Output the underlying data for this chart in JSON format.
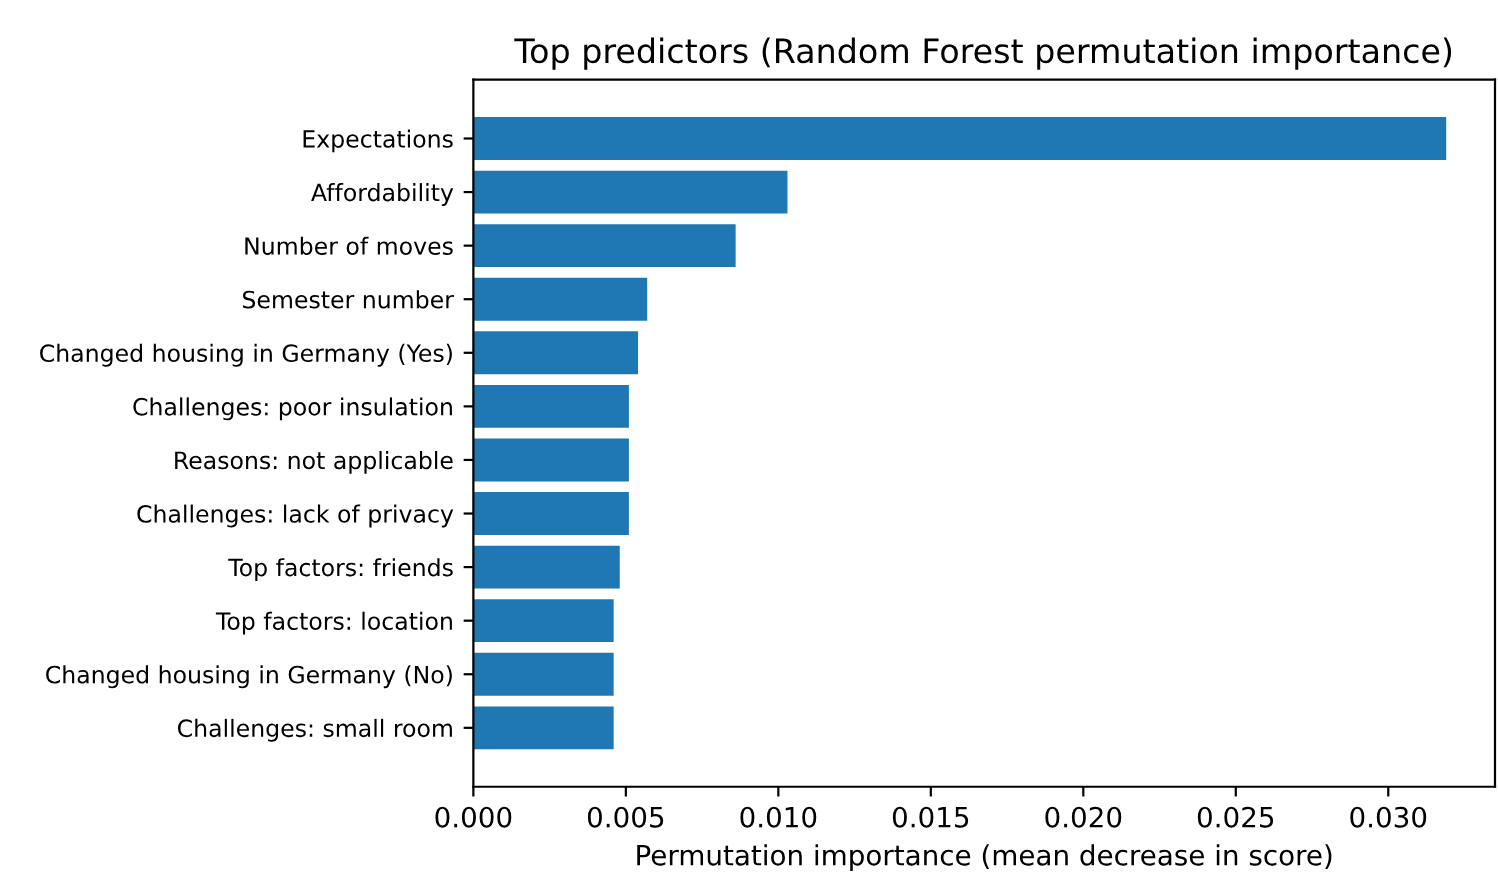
{
  "chart_data": {
    "type": "bar",
    "orientation": "horizontal",
    "title": "Top predictors (Random Forest permutation importance)",
    "xlabel": "Permutation importance (mean decrease in score)",
    "categories": [
      "Expectations",
      "Affordability",
      "Number of moves",
      "Semester number",
      "Changed housing in Germany (Yes)",
      "Challenges: poor insulation",
      "Reasons: not applicable",
      "Challenges: lack of privacy",
      "Top factors: friends",
      "Top factors: location",
      "Changed housing in Germany (No)",
      "Challenges: small room"
    ],
    "values": [
      0.0319,
      0.0103,
      0.0086,
      0.0057,
      0.0054,
      0.0051,
      0.0051,
      0.0051,
      0.0048,
      0.0046,
      0.0046,
      0.0046
    ],
    "color": "#1f77b4",
    "xlim": [
      0,
      0.0335
    ],
    "xticks": [
      {
        "value": 0,
        "label": "0.000"
      },
      {
        "value": 0.005,
        "label": "0.005"
      },
      {
        "value": 0.01,
        "label": "0.010"
      },
      {
        "value": 0.015,
        "label": "0.015"
      },
      {
        "value": 0.02,
        "label": "0.020"
      },
      {
        "value": 0.025,
        "label": "0.025"
      },
      {
        "value": 0.03,
        "label": "0.030"
      }
    ],
    "grid": false
  }
}
